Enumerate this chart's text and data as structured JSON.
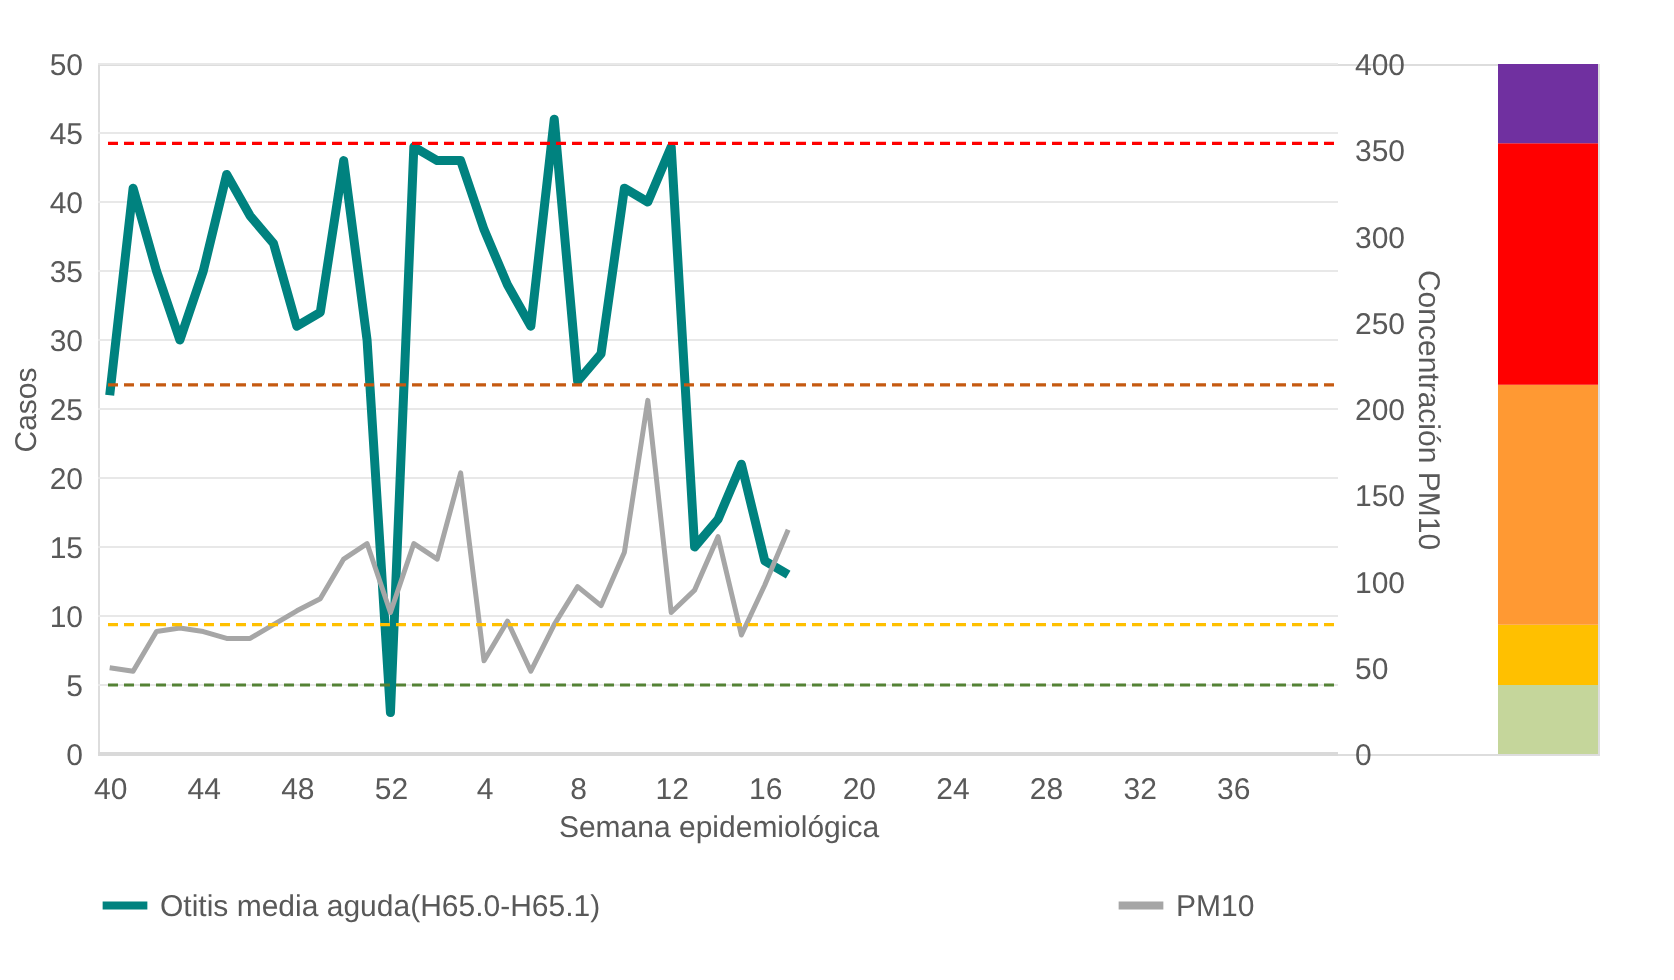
{
  "chart_data": {
    "type": "line",
    "xlabel": "Semana epidemiológica",
    "ylabel": "Casos",
    "y2label": "Concentración PM10",
    "categories": [
      "40",
      null,
      null,
      null,
      "44",
      null,
      null,
      null,
      "48",
      null,
      null,
      null,
      "52",
      null,
      null,
      null,
      "4",
      null,
      null,
      null,
      "8",
      null,
      null,
      null,
      "12",
      null,
      null,
      null,
      "16",
      null,
      null,
      null,
      "20",
      null,
      null,
      null,
      "24",
      null,
      null,
      null,
      "28",
      null,
      null,
      null,
      "32",
      null,
      null,
      null,
      "36",
      null,
      null,
      null,
      null
    ],
    "series": [
      {
        "name": "Otitis media aguda(H65.0-H65.1)",
        "color": "#00827f",
        "values": [
          26,
          41,
          35,
          30,
          35,
          42,
          39,
          37,
          31,
          32,
          43,
          30,
          3,
          44,
          43,
          43,
          38,
          34,
          31,
          46,
          27,
          29,
          41,
          40,
          44,
          15,
          17,
          21,
          14,
          13,
          null,
          null,
          null,
          null,
          null,
          null,
          null,
          null,
          null,
          null,
          null,
          null,
          null,
          null,
          null,
          null,
          null,
          null,
          null,
          null,
          null,
          null,
          null
        ]
      },
      {
        "name": "PM10",
        "color": "#a6a6a6",
        "axis": "y2",
        "values": [
          50,
          48,
          71,
          73,
          71,
          67,
          67,
          75,
          83,
          90,
          113,
          122,
          82,
          122,
          113,
          163,
          54,
          77,
          48,
          75,
          97,
          86,
          117,
          205,
          82,
          95,
          126,
          69,
          98,
          130,
          null,
          null,
          null,
          null,
          null,
          null,
          null,
          null,
          null,
          null,
          null,
          null,
          null,
          null,
          null,
          null,
          null,
          null,
          null,
          null,
          null,
          null,
          null
        ]
      }
    ],
    "ylim": [
      0,
      50
    ],
    "yticks": [
      0,
      5,
      10,
      15,
      20,
      25,
      30,
      35,
      40,
      45,
      50
    ],
    "y2lim": [
      0,
      400
    ],
    "y2ticks": [
      0,
      50,
      100,
      150,
      200,
      250,
      300,
      350,
      400
    ],
    "ref_lines": [
      {
        "axis": "y2",
        "value": 354,
        "color": "#ff0000",
        "line_style": "dashed"
      },
      {
        "axis": "y2",
        "value": 214,
        "color": "#c55a11",
        "line_style": "dashed"
      },
      {
        "axis": "y2",
        "value": 75,
        "color": "#ffc000",
        "line_style": "dashed"
      },
      {
        "axis": "y2",
        "value": 40,
        "color": "#548235",
        "line_style": "dashed"
      }
    ],
    "grid": "y",
    "legend": "bottom",
    "marker": "none",
    "line_style": "solid"
  }
}
